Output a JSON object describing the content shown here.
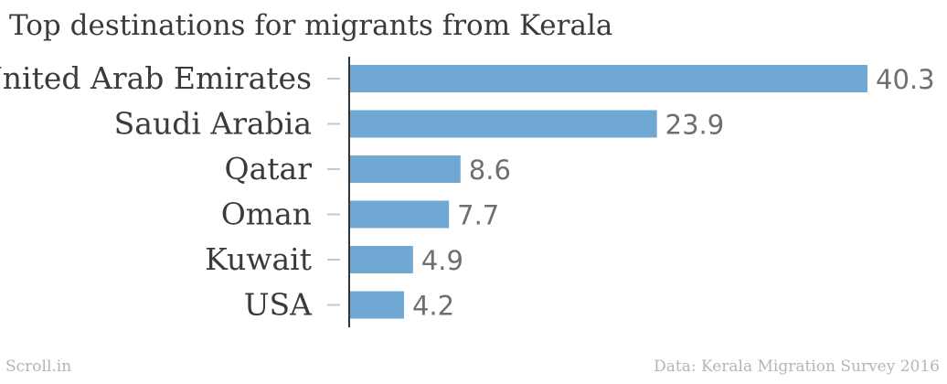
{
  "chart_data": {
    "type": "bar",
    "orientation": "horizontal",
    "title": "Top destinations for migrants from Kerala",
    "categories": [
      "United Arab Emirates",
      "Saudi Arabia",
      "Qatar",
      "Oman",
      "Kuwait",
      "USA"
    ],
    "values": [
      40.3,
      23.9,
      8.6,
      7.7,
      4.9,
      4.2
    ],
    "value_labels": [
      "40.3",
      "23.9",
      "8.6",
      "7.7",
      "4.9",
      "4.2"
    ],
    "xlim": [
      0,
      40.3
    ],
    "grid": false,
    "legend": "none",
    "bar_color": "#6fa8d2"
  },
  "footer": {
    "brand": "Scroll.in",
    "source": "Data: Kerala Migration Survey 2016"
  }
}
